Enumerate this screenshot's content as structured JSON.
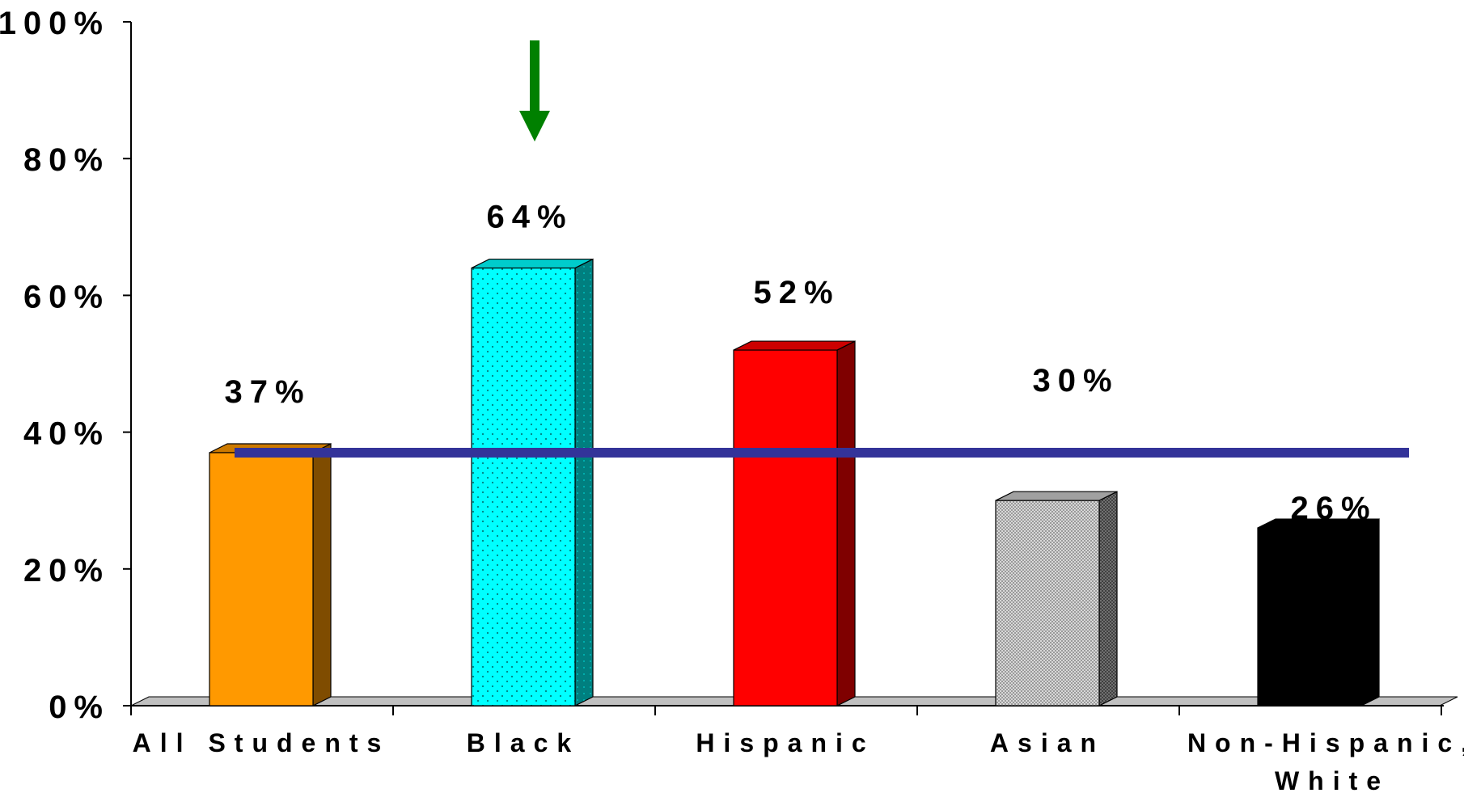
{
  "chart_data": {
    "type": "bar",
    "categories": [
      [
        "All Students"
      ],
      [
        "Black"
      ],
      [
        "Hispanic"
      ],
      [
        "Asian"
      ],
      [
        "Non-Hispanic,",
        "White"
      ]
    ],
    "values": [
      37,
      64,
      52,
      30,
      26
    ],
    "data_labels": [
      "37%",
      "64%",
      "52%",
      "30%",
      "26%"
    ],
    "bar_colors": [
      {
        "front": "#FF9900",
        "side": "#7F4C00",
        "top": "#CC7A00",
        "pattern": "solid"
      },
      {
        "front": "#00FFFF",
        "side": "#007F7F",
        "top": "#00CCCC",
        "pattern": "dots"
      },
      {
        "front": "#FF0000",
        "side": "#7F0000",
        "top": "#CC0000",
        "pattern": "solid"
      },
      {
        "front": "#C0C0C0",
        "side": "#606060",
        "top": "#A0A0A0",
        "pattern": "checker"
      },
      {
        "front": "#000000",
        "side": "#000000",
        "top": "#000000",
        "pattern": "solid"
      }
    ],
    "y_ticks": [
      0,
      20,
      40,
      60,
      80,
      100
    ],
    "y_tick_labels": [
      "0%",
      "20%",
      "40%",
      "60%",
      "80%",
      "100%"
    ],
    "ylim": [
      0,
      100
    ],
    "reference_line": {
      "value": 37,
      "color": "#333399"
    },
    "highlight_arrow": {
      "category_index": 1,
      "color": "#008000"
    },
    "title": "",
    "xlabel": "",
    "ylabel": "",
    "grid": false,
    "legend": "none"
  }
}
